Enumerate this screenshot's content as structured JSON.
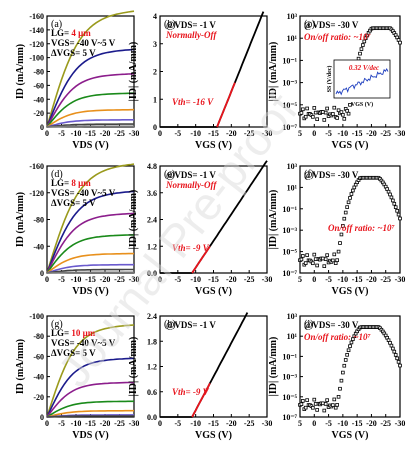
{
  "figure": {
    "watermark": "Journal Pre-proof",
    "colors": {
      "lg4_series": [
        "#9a9a1c",
        "#1b1b8c",
        "#8c1e8c",
        "#1a8a1a",
        "#e8901c",
        "#6a5acd"
      ],
      "lg8_series": [
        "#9a9a1c",
        "#1b1b8c",
        "#8c1e8c",
        "#1a8a1a",
        "#e8901c",
        "#6a5acd"
      ],
      "lg10_series": [
        "#9a9a1c",
        "#1b1b8c",
        "#8c1e8c",
        "#1a8a1a",
        "#e8901c",
        "#6a5acd"
      ],
      "red": "#e8141c",
      "inset_blue": "#1f3fbf"
    }
  },
  "chart_data": [
    {
      "id": "a",
      "panel_label": "(a)",
      "type": "line",
      "xlabel": "VDS (V)",
      "ylabel": "ID (mA/mm)",
      "xlim": [
        0,
        -30
      ],
      "ylim": [
        0,
        -160
      ],
      "xticks": [
        "0",
        "-5",
        "-10",
        "-15",
        "-20",
        "-25",
        "-30"
      ],
      "yticks": [
        "0",
        "-20",
        "-40",
        "-60",
        "-80",
        "-100",
        "-120",
        "-140",
        "-160"
      ],
      "annotations": [
        "LG= 4 μm",
        "VGS= -40 V~5 V",
        "ΔVGS= 5 V"
      ],
      "highlight": "4 μm",
      "family": "output",
      "series_sat": [
        -162,
        -108,
        -74,
        -47,
        -24,
        -10,
        -4,
        -1
      ]
    },
    {
      "id": "b",
      "panel_label": "(b)",
      "type": "line",
      "xlabel": "VGS (V)",
      "ylabel": "|ID| (mA/mm)",
      "xlim": [
        0,
        -30
      ],
      "ylim": [
        0,
        4
      ],
      "xticks": [
        "0",
        "-5",
        "-10",
        "-15",
        "-20",
        "-25",
        "-30"
      ],
      "yticks": [
        "0",
        "1",
        "2",
        "3",
        "4"
      ],
      "annotations": [
        "@VDS= -1 V"
      ],
      "red_text": [
        "Normally-Off",
        "Vth= -16 V"
      ],
      "vth": -16,
      "slope": 0.32
    },
    {
      "id": "c",
      "panel_label": "(c)",
      "type": "scatter",
      "xlabel": "VGS (V)",
      "ylabel": "|ID| (mA/mm)",
      "xlim": [
        5,
        -30
      ],
      "ylim_log": [
        -7,
        3
      ],
      "xticks": [
        "5",
        "0",
        "-5",
        "-10",
        "-15",
        "-20",
        "-25",
        "-30"
      ],
      "yticks": [
        "10⁻⁷",
        "10⁻⁵",
        "10⁻³",
        "10⁻¹",
        "10¹",
        "10³"
      ],
      "annotations": [
        "@VDS= -30 V"
      ],
      "red_text": [
        "On/off ratio: ~10⁷"
      ],
      "inset": {
        "ylabel": "SS (V/dec)",
        "xlabel": "VGS (V)",
        "red_text": "0.32 V/dec"
      }
    },
    {
      "id": "d",
      "panel_label": "(d)",
      "type": "line",
      "xlabel": "VDS (V)",
      "ylabel": "ID (mA/mm)",
      "xlim": [
        0,
        -30
      ],
      "ylim": [
        0,
        -160
      ],
      "xticks": [
        "0",
        "-5",
        "-10",
        "-15",
        "-20",
        "-25",
        "-30"
      ],
      "yticks": [
        "0",
        "-40",
        "-80",
        "-120",
        "-160"
      ],
      "annotations": [
        "LG= 8 μm",
        "VGS= -40 V~5 V",
        "ΔVGS= 5 V"
      ],
      "highlight": "8 μm",
      "family": "output",
      "series_sat": [
        -158,
        -118,
        -86,
        -55,
        -28,
        -12,
        -5,
        -1
      ]
    },
    {
      "id": "e",
      "panel_label": "(e)",
      "type": "line",
      "xlabel": "VGS (V)",
      "ylabel": "|ID| (mA/mm)",
      "xlim": [
        0,
        -30
      ],
      "ylim": [
        0,
        4.8
      ],
      "xticks": [
        "0",
        "-5",
        "-10",
        "-15",
        "-20",
        "-25",
        "-30"
      ],
      "yticks": [
        "0.0",
        "1.2",
        "2.4",
        "3.6",
        "4.8"
      ],
      "annotations": [
        "@VDS= -1 V"
      ],
      "red_text": [
        "Normally-Off",
        "Vth= -9 V"
      ],
      "vth": -9,
      "slope": 0.24
    },
    {
      "id": "f",
      "panel_label": "(f)",
      "type": "scatter",
      "xlabel": "VGS (V)",
      "ylabel": "|ID| (mA/mm)",
      "xlim": [
        5,
        -30
      ],
      "ylim_log": [
        -7,
        3
      ],
      "xticks": [
        "5",
        "0",
        "-5",
        "-10",
        "-15",
        "-20",
        "-25",
        "-30"
      ],
      "yticks": [
        "10⁻⁷",
        "10⁻⁵",
        "10⁻³",
        "10⁻¹",
        "10¹",
        "10³"
      ],
      "annotations": [
        "@VDS= -30 V"
      ],
      "red_text": [
        "On/off ratio: ~10⁷"
      ]
    },
    {
      "id": "g",
      "panel_label": "(g)",
      "type": "line",
      "xlabel": "VDS (V)",
      "ylabel": "ID (mA/mm)",
      "xlim": [
        0,
        -30
      ],
      "ylim": [
        0,
        -100
      ],
      "xticks": [
        "0",
        "-5",
        "-10",
        "-15",
        "-20",
        "-25",
        "-30"
      ],
      "yticks": [
        "0",
        "-20",
        "-40",
        "-60",
        "-80",
        "-100"
      ],
      "annotations": [
        "LG= 10 μm",
        "VGS= -40 V~5 V",
        "ΔVGS= 5 V"
      ],
      "highlight": "10 μm",
      "family": "output",
      "series_sat": [
        -88,
        -56,
        -33,
        -15,
        -6,
        -2,
        -1,
        0
      ]
    },
    {
      "id": "h",
      "panel_label": "(h)",
      "type": "line",
      "xlabel": "VGS (V)",
      "ylabel": "|ID| (mA/mm)",
      "xlim": [
        0,
        -30
      ],
      "ylim": [
        0,
        2.4
      ],
      "xticks": [
        "0",
        "-5",
        "-10",
        "-15",
        "-20",
        "-25",
        "-30"
      ],
      "yticks": [
        "0.0",
        "0.6",
        "1.2",
        "1.8",
        "2.4"
      ],
      "annotations": [
        "@VDS= -1 V"
      ],
      "red_text": [
        "Vth= -9 V"
      ],
      "vth": -9,
      "slope": 0.16
    },
    {
      "id": "i",
      "panel_label": "(i)",
      "type": "scatter",
      "xlabel": "VGS (V)",
      "ylabel": "|ID| (mA/mm)",
      "xlim": [
        5,
        -30
      ],
      "ylim_log": [
        -7,
        3
      ],
      "xticks": [
        "5",
        "0",
        "-5",
        "-10",
        "-15",
        "-20",
        "-25",
        "-30"
      ],
      "yticks": [
        "10⁻⁷",
        "10⁻⁵",
        "10⁻³",
        "10⁻¹",
        "10¹",
        "10³"
      ],
      "annotations": [
        "@VDS= -30 V"
      ],
      "red_text": [
        "On/off ratio: ~10⁷"
      ]
    }
  ]
}
